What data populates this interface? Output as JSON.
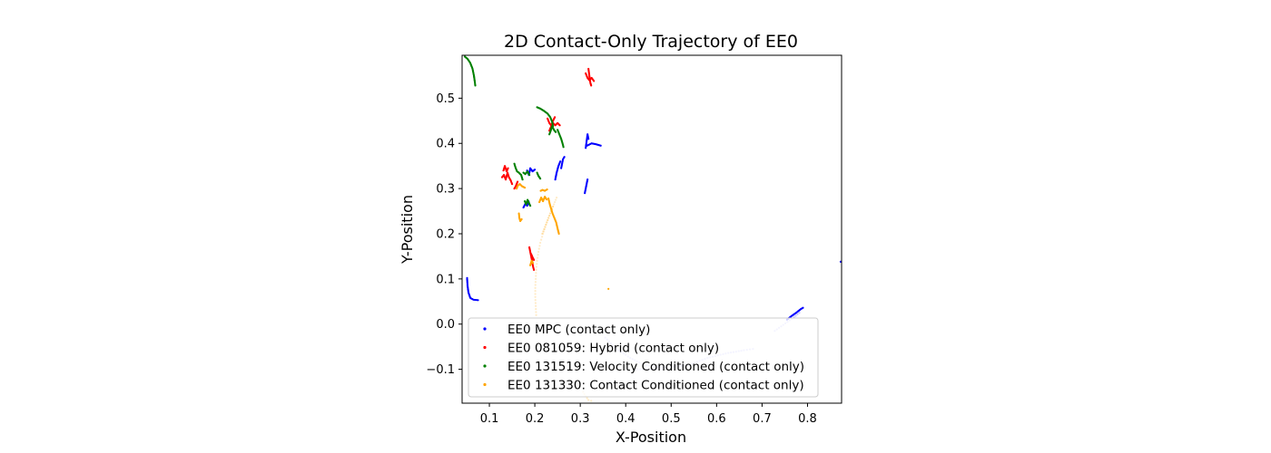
{
  "chart_data": {
    "type": "scatter",
    "title": "2D Contact-Only Trajectory of EE0",
    "xlabel": "X-Position",
    "ylabel": "Y-Position",
    "xlim": [
      0.04,
      0.875
    ],
    "ylim": [
      -0.175,
      0.595
    ],
    "xticks": [
      "0.1",
      "0.2",
      "0.3",
      "0.4",
      "0.5",
      "0.6",
      "0.7",
      "0.8"
    ],
    "yticks": [
      "0.5",
      "0.4",
      "0.3",
      "0.2",
      "0.1",
      "0.0",
      "−0.1"
    ],
    "grid": false,
    "legend_position": "lower right",
    "series": [
      {
        "name": "EE0 MPC (contact only)",
        "color": "#0000ff",
        "strokes": [
          [
            [
              0.051,
              0.102
            ],
            [
              0.052,
              0.085
            ],
            [
              0.054,
              0.07
            ],
            [
              0.058,
              0.058
            ],
            [
              0.065,
              0.054
            ],
            [
              0.075,
              0.053
            ]
          ],
          [
            [
              0.175,
              0.258
            ],
            [
              0.18,
              0.268
            ],
            [
              0.183,
              0.262
            ],
            [
              0.186,
              0.272
            ],
            [
              0.188,
              0.265
            ]
          ],
          [
            [
              0.183,
              0.34
            ],
            [
              0.187,
              0.33
            ],
            [
              0.19,
              0.345
            ],
            [
              0.195,
              0.338
            ],
            [
              0.2,
              0.342
            ]
          ],
          [
            [
              0.245,
              0.32
            ],
            [
              0.248,
              0.335
            ],
            [
              0.252,
              0.35
            ],
            [
              0.256,
              0.36
            ]
          ],
          [
            [
              0.258,
              0.345
            ],
            [
              0.26,
              0.355
            ],
            [
              0.262,
              0.365
            ],
            [
              0.265,
              0.37
            ]
          ],
          [
            [
              0.312,
              0.39
            ],
            [
              0.314,
              0.405
            ],
            [
              0.316,
              0.42
            ],
            [
              0.318,
              0.41
            ]
          ],
          [
            [
              0.315,
              0.395
            ],
            [
              0.325,
              0.4
            ],
            [
              0.335,
              0.398
            ],
            [
              0.345,
              0.395
            ]
          ],
          [
            [
              0.31,
              0.29
            ],
            [
              0.312,
              0.3
            ],
            [
              0.314,
              0.31
            ],
            [
              0.316,
              0.32
            ]
          ],
          [
            [
              0.755,
              0.01
            ],
            [
              0.765,
              0.018
            ],
            [
              0.775,
              0.025
            ],
            [
              0.785,
              0.033
            ],
            [
              0.79,
              0.036
            ]
          ],
          [
            [
              0.873,
              0.138
            ]
          ]
        ],
        "faint_strokes": [
          [
            [
              0.355,
              -0.03
            ],
            [
              0.38,
              -0.055
            ],
            [
              0.41,
              -0.075
            ],
            [
              0.44,
              -0.09
            ],
            [
              0.47,
              -0.095
            ],
            [
              0.5,
              -0.095
            ],
            [
              0.54,
              -0.09
            ],
            [
              0.58,
              -0.075
            ],
            [
              0.62,
              -0.065
            ],
            [
              0.66,
              -0.058
            ],
            [
              0.68,
              -0.055
            ]
          ],
          [
            [
              0.728,
              -0.015
            ],
            [
              0.742,
              -0.005
            ],
            [
              0.756,
              0.005
            ],
            [
              0.77,
              0.015
            ],
            [
              0.782,
              0.025
            ]
          ],
          [
            [
              0.42,
              -0.1
            ],
            [
              0.45,
              -0.1
            ],
            [
              0.48,
              -0.1
            ]
          ]
        ]
      },
      {
        "name": "EE0 081059: Hybrid (contact only)",
        "color": "#ff0000",
        "strokes": [
          [
            [
              0.312,
              0.555
            ],
            [
              0.316,
              0.545
            ],
            [
              0.32,
              0.54
            ],
            [
              0.325,
              0.545
            ],
            [
              0.33,
              0.538
            ]
          ],
          [
            [
              0.318,
              0.565
            ],
            [
              0.32,
              0.55
            ],
            [
              0.322,
              0.535
            ],
            [
              0.324,
              0.528
            ]
          ],
          [
            [
              0.228,
              0.455
            ],
            [
              0.232,
              0.445
            ],
            [
              0.236,
              0.44
            ],
            [
              0.24,
              0.445
            ],
            [
              0.245,
              0.44
            ],
            [
              0.25,
              0.445
            ],
            [
              0.255,
              0.44
            ]
          ],
          [
            [
              0.232,
              0.428
            ],
            [
              0.236,
              0.438
            ],
            [
              0.24,
              0.45
            ],
            [
              0.244,
              0.458
            ]
          ],
          [
            [
              0.128,
              0.325
            ],
            [
              0.132,
              0.33
            ],
            [
              0.136,
              0.32
            ],
            [
              0.14,
              0.335
            ],
            [
              0.143,
              0.325
            ],
            [
              0.147,
              0.318
            ],
            [
              0.15,
              0.31
            ]
          ],
          [
            [
              0.131,
              0.34
            ],
            [
              0.134,
              0.35
            ],
            [
              0.138,
              0.338
            ],
            [
              0.141,
              0.345
            ]
          ],
          [
            [
              0.155,
              0.3
            ],
            [
              0.158,
              0.305
            ],
            [
              0.162,
              0.315
            ]
          ],
          [
            [
              0.188,
              0.17
            ],
            [
              0.19,
              0.16
            ],
            [
              0.192,
              0.15
            ],
            [
              0.194,
              0.14
            ],
            [
              0.196,
              0.128
            ],
            [
              0.198,
              0.12
            ]
          ],
          [
            [
              0.192,
              0.155
            ],
            [
              0.195,
              0.148
            ],
            [
              0.198,
              0.142
            ]
          ]
        ],
        "faint_strokes": []
      },
      {
        "name": "EE0 131519: Velocity Conditioned (contact only)",
        "color": "#008000",
        "strokes": [
          [
            [
              0.046,
              0.592
            ],
            [
              0.052,
              0.587
            ],
            [
              0.058,
              0.578
            ],
            [
              0.063,
              0.565
            ],
            [
              0.066,
              0.55
            ],
            [
              0.068,
              0.536
            ],
            [
              0.069,
              0.528
            ]
          ],
          [
            [
              0.205,
              0.48
            ],
            [
              0.212,
              0.477
            ],
            [
              0.22,
              0.472
            ],
            [
              0.228,
              0.466
            ],
            [
              0.234,
              0.458
            ],
            [
              0.238,
              0.448
            ],
            [
              0.24,
              0.438
            ]
          ],
          [
            [
              0.232,
              0.42
            ],
            [
              0.235,
              0.428
            ],
            [
              0.238,
              0.438
            ],
            [
              0.242,
              0.43
            ],
            [
              0.246,
              0.425
            ]
          ],
          [
            [
              0.25,
              0.43
            ],
            [
              0.254,
              0.42
            ],
            [
              0.258,
              0.41
            ],
            [
              0.261,
              0.4
            ],
            [
              0.263,
              0.392
            ]
          ],
          [
            [
              0.155,
              0.355
            ],
            [
              0.158,
              0.345
            ],
            [
              0.161,
              0.338
            ],
            [
              0.165,
              0.335
            ],
            [
              0.17,
              0.33
            ],
            [
              0.173,
              0.32
            ]
          ],
          [
            [
              0.175,
              0.335
            ],
            [
              0.179,
              0.332
            ],
            [
              0.184,
              0.338
            ],
            [
              0.188,
              0.33
            ]
          ],
          [
            [
              0.205,
              0.335
            ],
            [
              0.208,
              0.328
            ],
            [
              0.212,
              0.322
            ]
          ],
          [
            [
              0.178,
              0.272
            ],
            [
              0.181,
              0.265
            ],
            [
              0.184,
              0.275
            ],
            [
              0.187,
              0.268
            ],
            [
              0.19,
              0.262
            ]
          ]
        ],
        "faint_strokes": []
      },
      {
        "name": "EE0 131330: Contact Conditioned (contact only)",
        "color": "#ffa500",
        "strokes": [
          [
            [
              0.16,
              0.3
            ],
            [
              0.163,
              0.307
            ],
            [
              0.167,
              0.31
            ],
            [
              0.172,
              0.305
            ],
            [
              0.178,
              0.302
            ]
          ],
          [
            [
              0.165,
              0.245
            ],
            [
              0.166,
              0.235
            ],
            [
              0.168,
              0.228
            ],
            [
              0.171,
              0.232
            ]
          ],
          [
            [
              0.21,
              0.27
            ],
            [
              0.214,
              0.28
            ],
            [
              0.218,
              0.272
            ],
            [
              0.222,
              0.282
            ],
            [
              0.226,
              0.276
            ]
          ],
          [
            [
              0.213,
              0.295
            ],
            [
              0.217,
              0.297
            ],
            [
              0.222,
              0.295
            ],
            [
              0.227,
              0.298
            ]
          ],
          [
            [
              0.23,
              0.278
            ],
            [
              0.233,
              0.265
            ],
            [
              0.236,
              0.255
            ],
            [
              0.239,
              0.245
            ],
            [
              0.243,
              0.235
            ],
            [
              0.247,
              0.225
            ],
            [
              0.25,
              0.212
            ],
            [
              0.253,
              0.2
            ]
          ],
          [
            [
              0.19,
              0.13
            ],
            [
              0.193,
              0.14
            ],
            [
              0.196,
              0.135
            ]
          ],
          [
            [
              0.362,
              0.078
            ]
          ]
        ],
        "faint_strokes": [
          [
            [
              0.248,
              0.28
            ],
            [
              0.24,
              0.26
            ],
            [
              0.232,
              0.24
            ],
            [
              0.225,
              0.22
            ],
            [
              0.218,
              0.2
            ],
            [
              0.212,
              0.18
            ],
            [
              0.208,
              0.16
            ],
            [
              0.205,
              0.14
            ],
            [
              0.203,
              0.12
            ],
            [
              0.202,
              0.1
            ],
            [
              0.201,
              0.08
            ],
            [
              0.201,
              0.06
            ],
            [
              0.202,
              0.04
            ],
            [
              0.203,
              0.02
            ]
          ],
          [
            [
              0.24,
              0.26
            ],
            [
              0.236,
              0.25
            ],
            [
              0.232,
              0.24
            ],
            [
              0.228,
              0.23
            ],
            [
              0.224,
              0.22
            ],
            [
              0.22,
              0.21
            ],
            [
              0.216,
              0.2
            ]
          ],
          [
            [
              0.306,
              -0.15
            ],
            [
              0.312,
              -0.16
            ],
            [
              0.318,
              -0.168
            ],
            [
              0.324,
              -0.17
            ]
          ]
        ]
      }
    ]
  }
}
